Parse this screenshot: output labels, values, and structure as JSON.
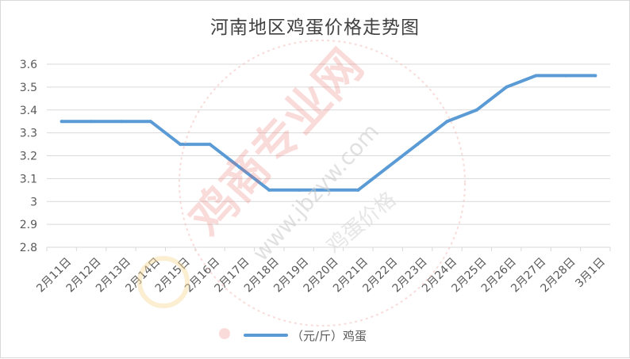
{
  "chart_data": {
    "type": "line",
    "title": "河南地区鸡蛋价格走势图",
    "categories": [
      "2月11日",
      "2月12日",
      "2月13日",
      "2月14日",
      "2月15日",
      "2月16日",
      "2月17日",
      "2月18日",
      "2月19日",
      "2月20日",
      "2月21日",
      "2月22日",
      "2月23日",
      "2月24日",
      "2月25日",
      "2月26日",
      "2月27日",
      "2月28日",
      "3月1日"
    ],
    "series": [
      {
        "name": "（元/斤）鸡蛋",
        "color": "#5b9bd5",
        "values": [
          3.35,
          3.35,
          3.35,
          3.35,
          3.25,
          3.25,
          3.15,
          3.05,
          3.05,
          3.05,
          3.05,
          3.15,
          3.25,
          3.35,
          3.4,
          3.5,
          3.55,
          3.55,
          3.55
        ]
      }
    ],
    "ylim": [
      2.8,
      3.6
    ],
    "yticks": [
      "3.6",
      "3.5",
      "3.4",
      "3.3",
      "3.2",
      "3.1",
      "3",
      "2.9",
      "2.8"
    ],
    "grid": true,
    "legend": "bottom"
  },
  "watermark": {
    "text_main": "鸡商专业网",
    "text_url": "www.jbzyw.com",
    "text_small": "鸡蛋价格"
  }
}
